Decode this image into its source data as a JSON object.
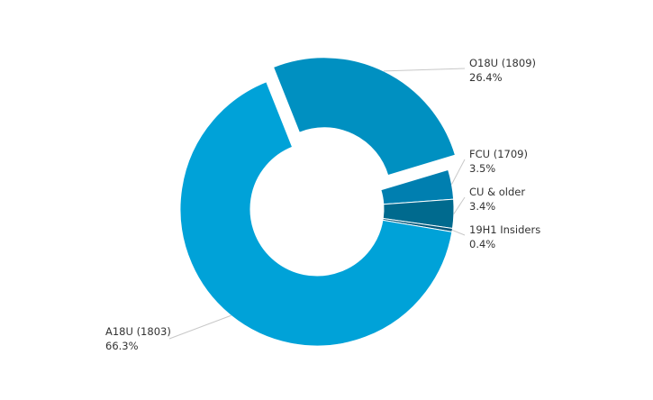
{
  "chart_data": {
    "type": "pie",
    "variant": "donut",
    "title": "",
    "slices": [
      {
        "name": "O18U (1809)",
        "value": 26.4,
        "percent_label": "26.4%",
        "color": "#0090C1",
        "exploded": true
      },
      {
        "name": "FCU (1709)",
        "value": 3.5,
        "percent_label": "3.5%",
        "color": "#007FB0",
        "exploded": false
      },
      {
        "name": "CU & older",
        "value": 3.4,
        "percent_label": "3.4%",
        "color": "#006A8E",
        "exploded": false
      },
      {
        "name": "19H1 Insiders",
        "value": 0.4,
        "percent_label": "0.4%",
        "color": "#00567A",
        "exploded": false
      },
      {
        "name": "A18U (1803)",
        "value": 66.3,
        "percent_label": "66.3%",
        "color": "#00A2D8",
        "exploded": false
      }
    ],
    "legend": "none",
    "labels": "outside with leader lines"
  }
}
